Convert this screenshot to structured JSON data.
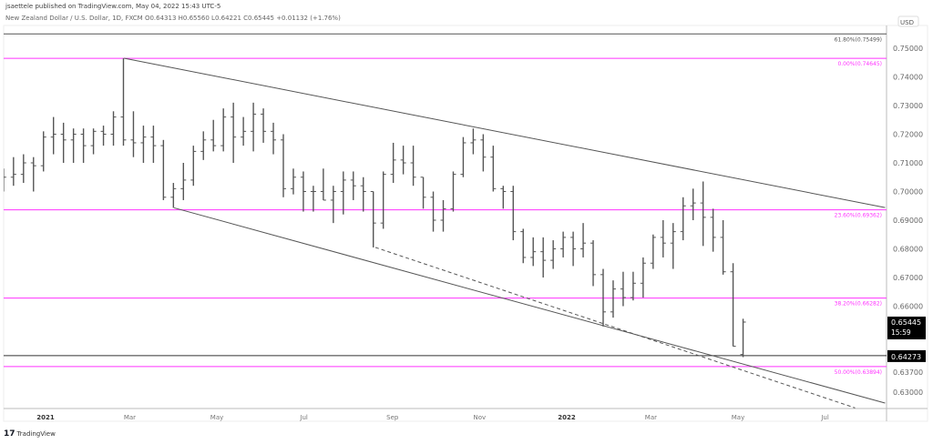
{
  "header": {
    "published": "jsaettele published on TradingView.com, May 04, 2022 15:43 UTC-5",
    "symbol_line": "New Zealand Dollar / U.S. Dollar, 1D, FXCM  O0.64313  H0.65560  L0.64221  C0.65445  +0.01132 (+1.76%)"
  },
  "footer": {
    "brand": "TradingView",
    "logo": "tradingview-logo-icon"
  },
  "colors": {
    "bars": "#555555",
    "fib": "#ff33ff",
    "trend": "#555555",
    "level": "#333333",
    "last_price_bg": "#000000"
  },
  "chart_data": {
    "type": "ohlc",
    "currency": "USD",
    "ylim": [
      0.6245,
      0.7595
    ],
    "y_ticks": [
      "0.75000",
      "0.74000",
      "0.73000",
      "0.72000",
      "0.71000",
      "0.70000",
      "0.69000",
      "0.68000",
      "0.67000",
      "0.66000",
      "0.63700",
      "0.63000"
    ],
    "x_ticks": [
      {
        "date": "2021-01-01",
        "label": "2021"
      },
      {
        "date": "2021-03-01",
        "label": "Mar"
      },
      {
        "date": "2021-05-01",
        "label": "May"
      },
      {
        "date": "2021-07-01",
        "label": "Jul"
      },
      {
        "date": "2021-09-01",
        "label": "Sep"
      },
      {
        "date": "2021-11-01",
        "label": "Nov"
      },
      {
        "date": "2022-01-01",
        "label": "2022"
      },
      {
        "date": "2022-03-01",
        "label": "Mar"
      },
      {
        "date": "2022-05-01",
        "label": "May"
      },
      {
        "date": "2022-07-01",
        "label": "Jul"
      }
    ],
    "xlim": [
      "2020-12-01",
      "2022-08-12"
    ],
    "bars": [
      [
        "2020-11-30",
        0.703,
        0.708,
        0.7,
        0.705
      ],
      [
        "2020-12-07",
        0.705,
        0.712,
        0.702,
        0.706
      ],
      [
        "2020-12-14",
        0.706,
        0.713,
        0.703,
        0.71
      ],
      [
        "2020-12-21",
        0.71,
        0.712,
        0.7,
        0.709
      ],
      [
        "2020-12-28",
        0.709,
        0.721,
        0.707,
        0.719
      ],
      [
        "2021-01-04",
        0.719,
        0.726,
        0.713,
        0.72
      ],
      [
        "2021-01-11",
        0.72,
        0.724,
        0.71,
        0.718
      ],
      [
        "2021-01-18",
        0.718,
        0.722,
        0.71,
        0.72
      ],
      [
        "2021-01-25",
        0.72,
        0.722,
        0.71,
        0.716
      ],
      [
        "2021-02-01",
        0.716,
        0.722,
        0.713,
        0.721
      ],
      [
        "2021-02-08",
        0.721,
        0.723,
        0.716,
        0.72
      ],
      [
        "2021-02-15",
        0.72,
        0.728,
        0.716,
        0.726
      ],
      [
        "2021-02-22",
        0.726,
        0.7465,
        0.716,
        0.718
      ],
      [
        "2021-03-01",
        0.718,
        0.728,
        0.712,
        0.717
      ],
      [
        "2021-03-08",
        0.717,
        0.723,
        0.71,
        0.719
      ],
      [
        "2021-03-15",
        0.719,
        0.723,
        0.71,
        0.716
      ],
      [
        "2021-03-22",
        0.716,
        0.718,
        0.697,
        0.698
      ],
      [
        "2021-03-29",
        0.698,
        0.703,
        0.6943,
        0.701
      ],
      [
        "2021-04-05",
        0.701,
        0.71,
        0.697,
        0.704
      ],
      [
        "2021-04-12",
        0.704,
        0.716,
        0.702,
        0.714
      ],
      [
        "2021-04-19",
        0.714,
        0.721,
        0.711,
        0.718
      ],
      [
        "2021-04-26",
        0.718,
        0.725,
        0.714,
        0.716
      ],
      [
        "2021-05-03",
        0.716,
        0.729,
        0.714,
        0.726
      ],
      [
        "2021-05-10",
        0.726,
        0.731,
        0.71,
        0.719
      ],
      [
        "2021-05-17",
        0.719,
        0.726,
        0.716,
        0.721
      ],
      [
        "2021-05-24",
        0.721,
        0.731,
        0.714,
        0.727
      ],
      [
        "2021-05-31",
        0.727,
        0.729,
        0.717,
        0.721
      ],
      [
        "2021-06-07",
        0.721,
        0.724,
        0.713,
        0.718
      ],
      [
        "2021-06-14",
        0.718,
        0.72,
        0.698,
        0.701
      ],
      [
        "2021-06-21",
        0.701,
        0.708,
        0.699,
        0.705
      ],
      [
        "2021-06-28",
        0.705,
        0.707,
        0.693,
        0.7
      ],
      [
        "2021-07-05",
        0.7,
        0.702,
        0.693,
        0.7
      ],
      [
        "2021-07-12",
        0.7,
        0.708,
        0.697,
        0.697
      ],
      [
        "2021-07-19",
        0.697,
        0.702,
        0.689,
        0.7
      ],
      [
        "2021-07-26",
        0.7,
        0.707,
        0.692,
        0.704
      ],
      [
        "2021-08-02",
        0.704,
        0.707,
        0.697,
        0.702
      ],
      [
        "2021-08-09",
        0.702,
        0.705,
        0.693,
        0.7
      ],
      [
        "2021-08-16",
        0.7,
        0.7,
        0.6805,
        0.689
      ],
      [
        "2021-08-23",
        0.689,
        0.707,
        0.687,
        0.706
      ],
      [
        "2021-08-30",
        0.706,
        0.717,
        0.703,
        0.711
      ],
      [
        "2021-09-06",
        0.711,
        0.716,
        0.706,
        0.71
      ],
      [
        "2021-09-13",
        0.71,
        0.716,
        0.702,
        0.705
      ],
      [
        "2021-09-20",
        0.705,
        0.705,
        0.694,
        0.698
      ],
      [
        "2021-09-27",
        0.698,
        0.7,
        0.686,
        0.69
      ],
      [
        "2021-10-04",
        0.69,
        0.697,
        0.686,
        0.694
      ],
      [
        "2021-10-11",
        0.694,
        0.707,
        0.693,
        0.706
      ],
      [
        "2021-10-18",
        0.706,
        0.719,
        0.705,
        0.717
      ],
      [
        "2021-10-25",
        0.717,
        0.722,
        0.713,
        0.718
      ],
      [
        "2021-11-01",
        0.718,
        0.72,
        0.707,
        0.712
      ],
      [
        "2021-11-08",
        0.712,
        0.716,
        0.7,
        0.701
      ],
      [
        "2021-11-15",
        0.701,
        0.702,
        0.694,
        0.7
      ],
      [
        "2021-11-22",
        0.7,
        0.702,
        0.683,
        0.686
      ],
      [
        "2021-11-29",
        0.686,
        0.687,
        0.675,
        0.677
      ],
      [
        "2021-12-06",
        0.677,
        0.684,
        0.674,
        0.679
      ],
      [
        "2021-12-13",
        0.679,
        0.684,
        0.67,
        0.676
      ],
      [
        "2021-12-20",
        0.676,
        0.683,
        0.673,
        0.68
      ],
      [
        "2021-12-27",
        0.68,
        0.686,
        0.677,
        0.684
      ],
      [
        "2022-01-03",
        0.684,
        0.686,
        0.674,
        0.68
      ],
      [
        "2022-01-10",
        0.68,
        0.689,
        0.677,
        0.682
      ],
      [
        "2022-01-17",
        0.682,
        0.683,
        0.667,
        0.671
      ],
      [
        "2022-01-24",
        0.671,
        0.673,
        0.6529,
        0.658
      ],
      [
        "2022-01-31",
        0.658,
        0.669,
        0.656,
        0.666
      ],
      [
        "2022-02-07",
        0.666,
        0.672,
        0.66,
        0.663
      ],
      [
        "2022-02-14",
        0.663,
        0.672,
        0.662,
        0.668
      ],
      [
        "2022-02-21",
        0.668,
        0.677,
        0.663,
        0.675
      ],
      [
        "2022-02-28",
        0.675,
        0.685,
        0.673,
        0.684
      ],
      [
        "2022-03-07",
        0.684,
        0.69,
        0.677,
        0.682
      ],
      [
        "2022-03-14",
        0.682,
        0.689,
        0.673,
        0.686
      ],
      [
        "2022-03-21",
        0.686,
        0.698,
        0.683,
        0.695
      ],
      [
        "2022-03-28",
        0.695,
        0.701,
        0.69,
        0.696
      ],
      [
        "2022-04-04",
        0.696,
        0.7035,
        0.681,
        0.691
      ],
      [
        "2022-04-11",
        0.691,
        0.694,
        0.679,
        0.684
      ],
      [
        "2022-04-18",
        0.684,
        0.69,
        0.671,
        0.672
      ],
      [
        "2022-04-25",
        0.672,
        0.675,
        0.646,
        0.646
      ],
      [
        "2022-05-02",
        0.64313,
        0.6556,
        0.64221,
        0.65445
      ]
    ],
    "fib_levels": [
      {
        "label": "61.80%(0.75499)",
        "value": 0.75499,
        "color": "#555555"
      },
      {
        "label": "0.00%(0.74645)",
        "value": 0.74645,
        "color": "#ff33ff"
      },
      {
        "label": "23.60%(0.69362)",
        "value": 0.69362,
        "color": "#ff33ff"
      },
      {
        "label": "38.20%(0.66282)",
        "value": 0.66282,
        "color": "#ff33ff"
      },
      {
        "label": "50.00%(0.63894)",
        "value": 0.63894,
        "color": "#ff33ff"
      }
    ],
    "horizontal_level": {
      "value": 0.64273,
      "label": "0.64273"
    },
    "trendlines": [
      {
        "style": "solid",
        "from": [
          "2021-02-25",
          0.7465
        ],
        "to": [
          "2022-08-12",
          0.6944
        ]
      },
      {
        "style": "solid",
        "from": [
          "2021-04-01",
          0.6943
        ],
        "to": [
          "2022-08-12",
          0.6262
        ]
      },
      {
        "style": "dashed",
        "from": [
          "2021-08-20",
          0.6805
        ],
        "to": [
          "2022-07-22",
          0.6245
        ]
      }
    ],
    "last_price": {
      "value": "0.65445",
      "countdown": "15:59"
    }
  }
}
